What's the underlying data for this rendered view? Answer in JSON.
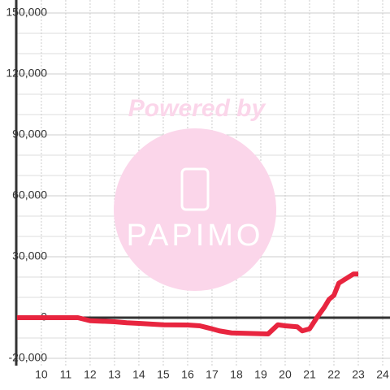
{
  "chart_data": {
    "type": "line",
    "x": [
      9,
      11.5,
      12,
      13,
      13.5,
      14,
      15,
      16,
      16.5,
      17,
      17.3,
      17.8,
      19.3,
      19.7,
      20,
      20.5,
      20.7,
      21,
      21.3,
      21.6,
      21.8,
      22,
      22.2,
      22.6,
      22.8,
      23
    ],
    "series": [
      {
        "color": "#e8253f",
        "values": [
          0,
          0,
          -1500,
          -2000,
          -2500,
          -2800,
          -3500,
          -3600,
          -4000,
          -5500,
          -6500,
          -7500,
          -8000,
          -3500,
          -4000,
          -4500,
          -6500,
          -5500,
          0,
          5000,
          9000,
          11000,
          17000,
          20000,
          21500,
          21500
        ]
      }
    ],
    "xlim": [
      8.97,
      24.3
    ],
    "xticks": [
      10,
      11,
      12,
      13,
      14,
      15,
      16,
      17,
      18,
      19,
      20,
      21,
      22,
      23,
      24
    ],
    "ylim": [
      -20000,
      150000
    ],
    "yticks": [
      {
        "value": -20000,
        "label": "-20,000"
      },
      0,
      {
        "value": 30000,
        "label": "30,000"
      },
      {
        "value": 60000,
        "label": "60,000"
      },
      {
        "value": 90000,
        "label": "90,000"
      },
      {
        "value": 120000,
        "label": "120,000"
      },
      {
        "value": 150000,
        "label": "150,000"
      }
    ],
    "minor_yticks": [
      -10000,
      10000,
      20000,
      40000,
      50000,
      70000,
      80000,
      100000,
      110000,
      130000,
      140000
    ],
    "grid": true,
    "watermark": {
      "top": "Powered by",
      "bottom": "PAPIMO"
    }
  }
}
